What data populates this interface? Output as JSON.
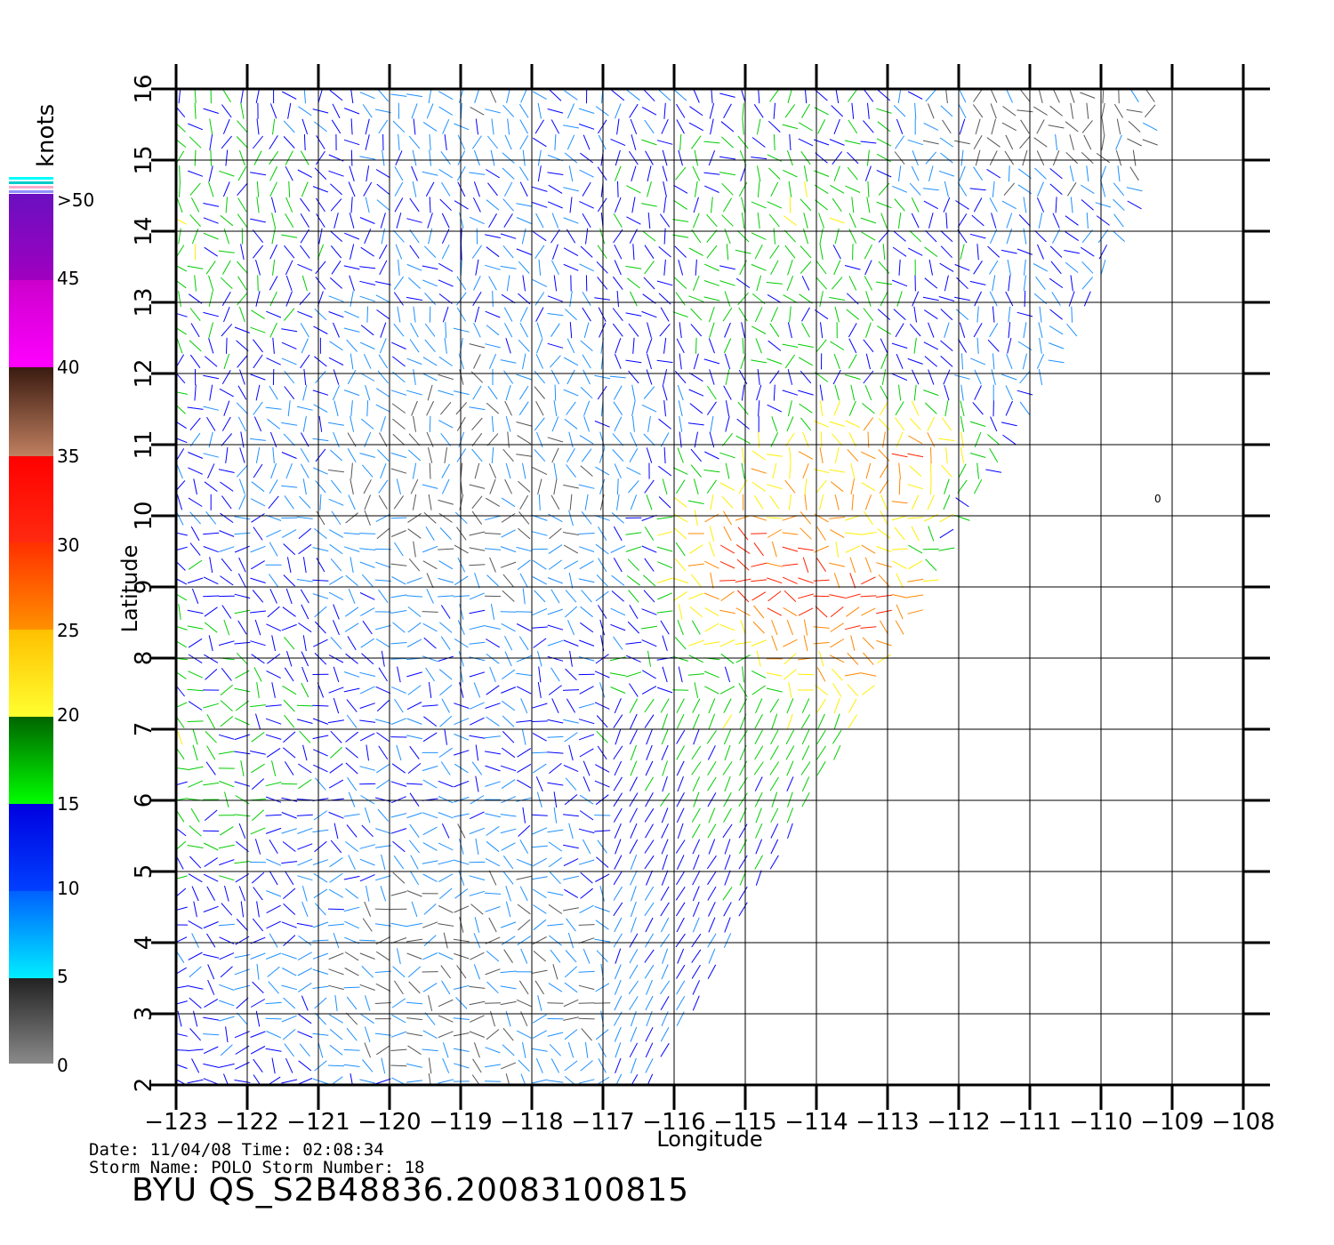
{
  "map": {
    "xlabel": "Longitude",
    "ylabel": "Latitude",
    "lon_ticks": [
      "-123",
      "-122",
      "-121",
      "-120",
      "-119",
      "-118",
      "-117",
      "-116",
      "-115",
      "-114",
      "-113",
      "-112",
      "-111",
      "-110",
      "-109",
      "-108"
    ],
    "lat_ticks": [
      "2",
      "3",
      "4",
      "5",
      "6",
      "7",
      "8",
      "9",
      "10",
      "11",
      "12",
      "13",
      "14",
      "15",
      "16"
    ],
    "lon_range": [
      -123,
      -108
    ],
    "lat_range": [
      2,
      16
    ],
    "swath_note": "wind vectors over swath between approx -123 and -109 lon",
    "marker_label": "0"
  },
  "legend": {
    "title": "knots",
    "labels": [
      ">50",
      "45",
      "40",
      "35",
      "30",
      "25",
      "20",
      "15",
      "10",
      "5",
      "0"
    ],
    "bins": [
      {
        "range": "0-5",
        "color": "#555555"
      },
      {
        "range": "5-10",
        "color": "#1e90ff"
      },
      {
        "range": "10-15",
        "color": "#0000ff"
      },
      {
        "range": "15-20",
        "color": "#00cc00"
      },
      {
        "range": "20-25",
        "color": "#ffee00"
      },
      {
        "range": "25-30",
        "color": "#ff8800"
      },
      {
        "range": "30-35",
        "color": "#ff2200"
      },
      {
        "range": "35-40",
        "color": "#8b4513"
      },
      {
        "range": "40-45",
        "color": "#ff00ff"
      },
      {
        "range": "45-50",
        "color": "#aa00cc"
      }
    ]
  },
  "footer": {
    "date_line": "Date: 11/04/08   Time: 02:08:34",
    "storm_line": "Storm Name: POLO   Storm Number: 18",
    "title": "BYU QS_S2B48836.20083100815"
  }
}
